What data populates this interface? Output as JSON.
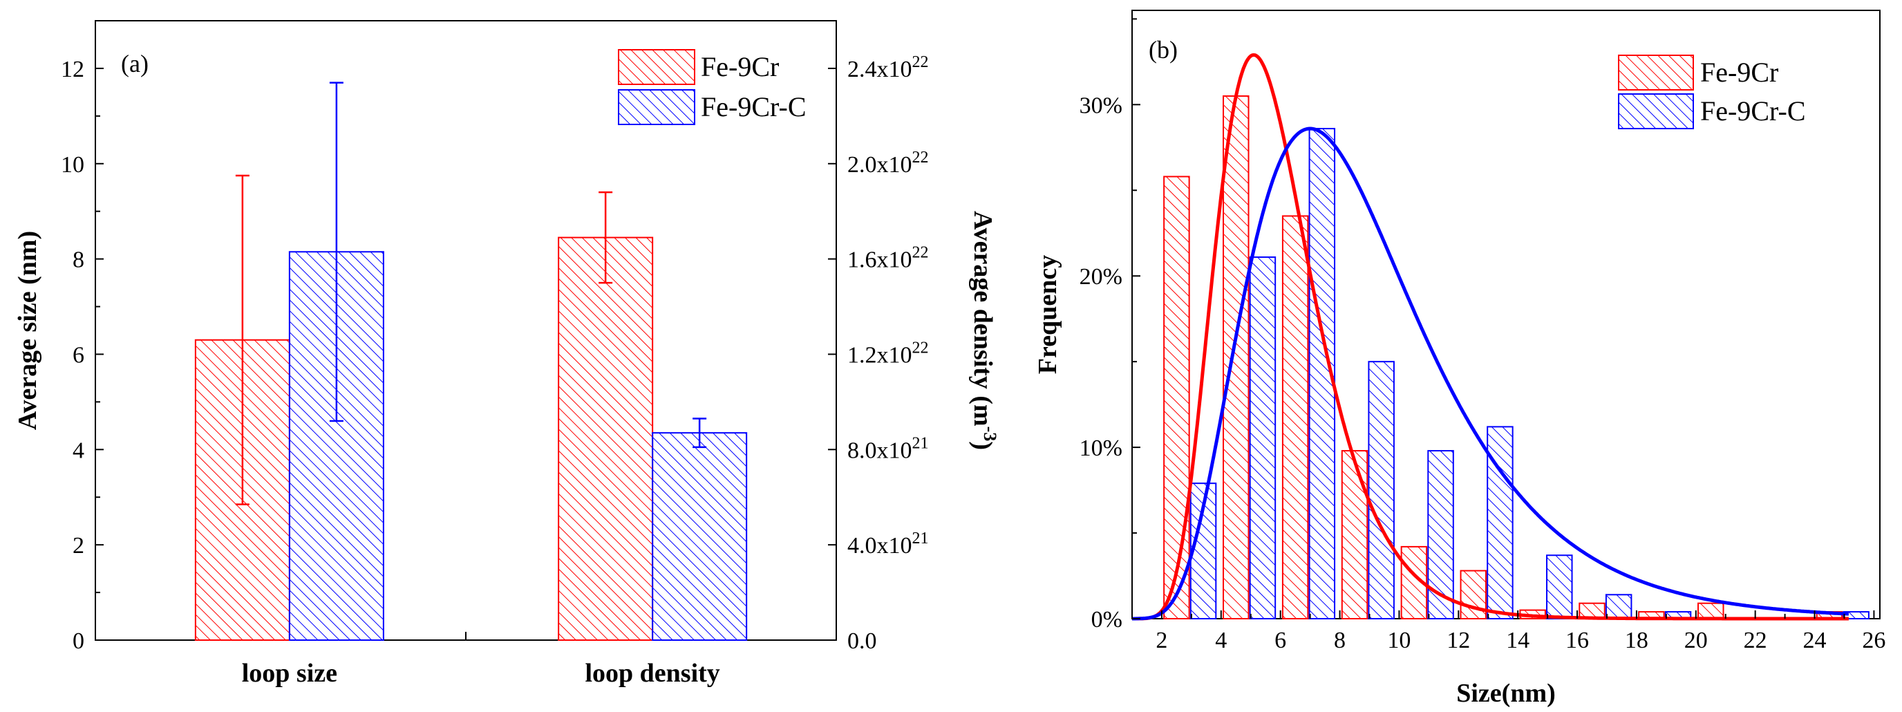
{
  "chart_data": [
    {
      "panel": "(a)",
      "type": "bar",
      "categories": [
        "loop size",
        "loop density"
      ],
      "series": [
        {
          "name": "Fe-9Cr",
          "color": "#ff0000",
          "values": [
            6.3,
            1.69e+22
          ],
          "errors": [
            3.45,
            1.9e+21
          ]
        },
        {
          "name": "Fe-9Cr-C",
          "color": "#0000ff",
          "values": [
            8.15,
            8.7e+21
          ],
          "errors": [
            3.55,
            6e+20
          ]
        }
      ],
      "series_axis": [
        "left",
        "right"
      ],
      "ylabel": "Average size (nm)",
      "ylim": [
        0,
        13
      ],
      "yticks": [
        "0",
        "2",
        "4",
        "6",
        "8",
        "10",
        "12"
      ],
      "y2label_main": "Average density (m",
      "y2label_exp": "-3",
      "y2label_end": ")",
      "y2lim": [
        0,
        2.6e+22
      ],
      "y2ticks": [
        {
          "value": 0,
          "mant": "0.0",
          "exp": ""
        },
        {
          "value": 4e+21,
          "mant": "4.0x10",
          "exp": "21"
        },
        {
          "value": 8e+21,
          "mant": "8.0x10",
          "exp": "21"
        },
        {
          "value": 1.2e+22,
          "mant": "1.2x10",
          "exp": "22"
        },
        {
          "value": 1.6e+22,
          "mant": "1.6x10",
          "exp": "22"
        },
        {
          "value": 2e+22,
          "mant": "2.0x10",
          "exp": "22"
        },
        {
          "value": 2.4e+22,
          "mant": "2.4x10",
          "exp": "22"
        }
      ],
      "legend": [
        "Fe-9Cr",
        "Fe-9Cr-C"
      ],
      "legend_position": "top-right"
    },
    {
      "panel": "(b)",
      "type": "bar",
      "xlabel": "Size(nm)",
      "ylabel": "Frequency",
      "xlim": [
        1,
        26.2
      ],
      "ylim": [
        0,
        0.355
      ],
      "xticks": [
        2,
        4,
        6,
        8,
        10,
        12,
        14,
        16,
        18,
        20,
        22,
        24,
        26
      ],
      "yticks": [
        {
          "value": 0,
          "label": "0%"
        },
        {
          "value": 0.1,
          "label": "10%"
        },
        {
          "value": 0.2,
          "label": "20%"
        },
        {
          "value": 0.3,
          "label": "30%"
        }
      ],
      "bin_width": 0.85,
      "series": [
        {
          "name": "Fe-9Cr",
          "color": "#ff0000",
          "x": [
            2.5,
            4.5,
            6.5,
            8.5,
            10.5,
            12.5,
            14.5,
            16.5,
            18.5,
            20.5,
            24.5
          ],
          "values": [
            0.258,
            0.305,
            0.235,
            0.098,
            0.042,
            0.028,
            0.005,
            0.009,
            0.004,
            0.009,
            0.004
          ],
          "fit": {
            "peak": 5.1,
            "amplitude": 0.329
          }
        },
        {
          "name": "Fe-9Cr-C",
          "color": "#0000ff",
          "x": [
            3.4,
            5.4,
            7.4,
            9.4,
            11.4,
            13.4,
            15.4,
            17.4,
            19.4,
            25.4
          ],
          "values": [
            0.079,
            0.211,
            0.286,
            0.15,
            0.098,
            0.112,
            0.037,
            0.014,
            0.004,
            0.004
          ],
          "fit": {
            "peak": 7.0,
            "amplitude": 0.286
          }
        }
      ],
      "legend": [
        "Fe-9Cr",
        "Fe-9Cr-C"
      ],
      "legend_position": "top-right"
    }
  ]
}
